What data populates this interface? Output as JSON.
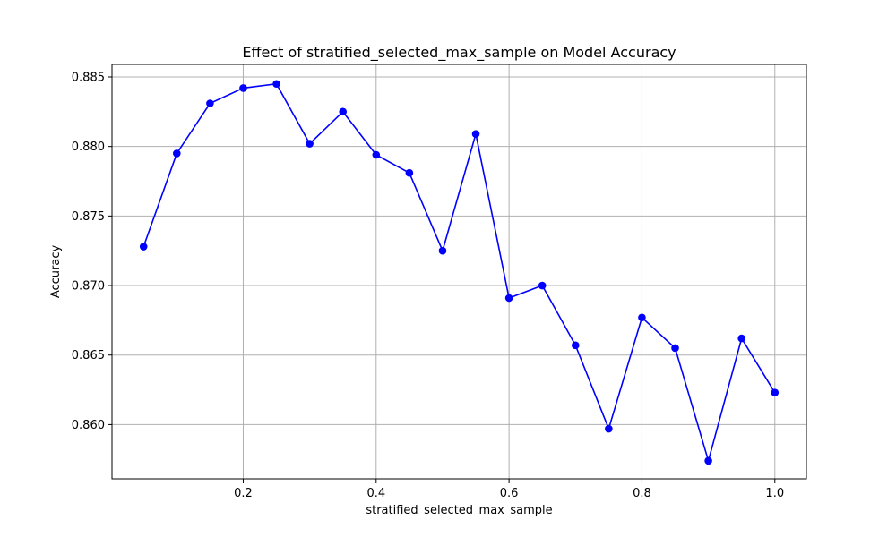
{
  "chart_data": {
    "type": "line",
    "title": "Effect of stratified_selected_max_sample on Model Accuracy",
    "xlabel": "stratified_selected_max_sample",
    "ylabel": "Accuracy",
    "xlim": [
      0.0025,
      1.0475
    ],
    "ylim": [
      0.8561,
      0.8859
    ],
    "xticks": [
      0.2,
      0.4,
      0.6,
      0.8,
      1.0
    ],
    "xtick_labels": [
      "0.2",
      "0.4",
      "0.6",
      "0.8",
      "1.0"
    ],
    "yticks": [
      0.86,
      0.865,
      0.87,
      0.875,
      0.88,
      0.885
    ],
    "ytick_labels": [
      "0.860",
      "0.865",
      "0.870",
      "0.875",
      "0.880",
      "0.885"
    ],
    "grid": true,
    "color": "#0000ff",
    "marker": "circle",
    "series": [
      {
        "x": [
          0.05,
          0.1,
          0.15,
          0.2,
          0.25,
          0.3,
          0.35,
          0.4,
          0.45,
          0.5,
          0.55,
          0.6,
          0.65,
          0.7,
          0.75,
          0.8,
          0.85,
          0.9,
          0.95,
          1.0
        ],
        "y": [
          0.8728,
          0.8795,
          0.8831,
          0.8842,
          0.8845,
          0.8802,
          0.8825,
          0.8794,
          0.8781,
          0.8725,
          0.8809,
          0.8691,
          0.87,
          0.8657,
          0.8597,
          0.8677,
          0.8655,
          0.8574,
          0.8662,
          0.8623
        ]
      }
    ]
  }
}
